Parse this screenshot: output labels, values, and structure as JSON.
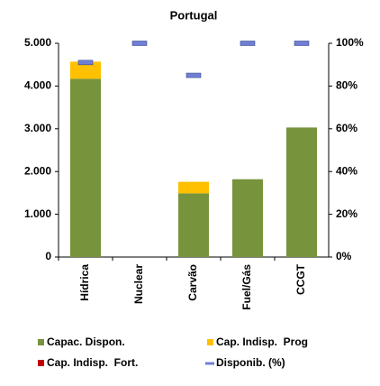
{
  "chart_data": {
    "type": "stacked_bar_with_markers",
    "title": "Portugal",
    "categories": [
      "Hídrica",
      "Nuclear",
      "Carvão",
      "Fuel/Gás",
      "CCGT"
    ],
    "series": [
      {
        "name": "Capac. Dispon.",
        "color": "#77933c",
        "values": [
          4170,
          0,
          1490,
          1820,
          3030
        ]
      },
      {
        "name": "Cap. Indisp.  Prog",
        "color": "#ffc000",
        "values": [
          400,
          0,
          270,
          0,
          0
        ]
      },
      {
        "name": "Cap. Indisp.  Fort.",
        "color": "#c00000",
        "values": [
          0,
          0,
          0,
          0,
          0
        ]
      },
      {
        "name": "Disponib. (%)",
        "color": "#6f7fd6",
        "axis": "y2",
        "values": [
          91,
          100,
          85,
          100,
          100
        ]
      }
    ],
    "ylim": [
      0,
      5000
    ],
    "yticks": [
      0,
      {
        "value": 1000,
        "label": "1.000"
      },
      {
        "value": 2000,
        "label": "2.000"
      },
      {
        "value": 3000,
        "label": "3.000"
      },
      {
        "value": 4000,
        "label": "4.000"
      },
      {
        "value": 5000,
        "label": "5.000"
      }
    ],
    "y2lim": [
      0,
      100
    ],
    "y2ticks": [
      {
        "value": 0,
        "label": "0%"
      },
      {
        "value": 20,
        "label": "20%"
      },
      {
        "value": 40,
        "label": "40%"
      },
      {
        "value": 60,
        "label": "60%"
      },
      {
        "value": 80,
        "label": "80%"
      },
      {
        "value": 100,
        "label": "100%"
      }
    ]
  }
}
